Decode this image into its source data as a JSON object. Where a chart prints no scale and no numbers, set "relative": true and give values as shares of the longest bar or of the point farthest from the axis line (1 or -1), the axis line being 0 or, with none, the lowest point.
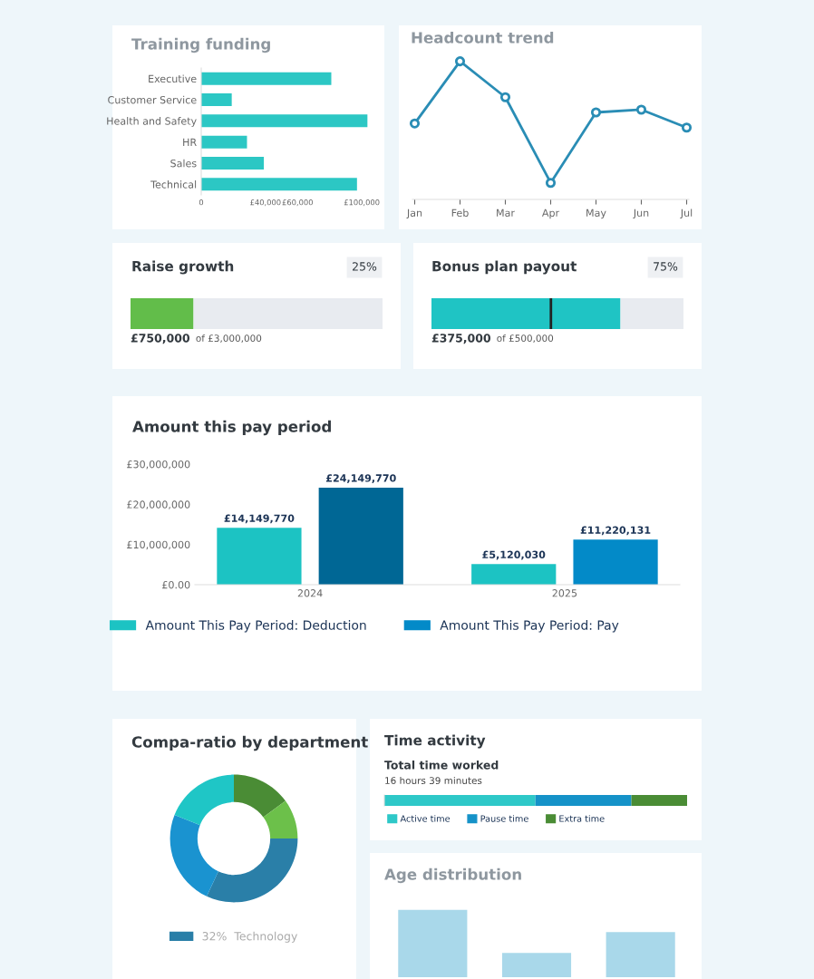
{
  "chart_data": [
    {
      "type": "bar",
      "title": "Training funding",
      "orientation": "horizontal",
      "categories": [
        "Executive",
        "Customer Service",
        "Health and Safety",
        "HR",
        "Sales",
        "Technical"
      ],
      "values": [
        81000,
        19000,
        103500,
        28500,
        39000,
        97000
      ],
      "color": "#2cc7c4",
      "xlim": [
        0,
        105000
      ],
      "xticks": [
        0,
        {
          "value": 40000,
          "label": "£40,000"
        },
        {
          "value": 60000,
          "label": "£60,000"
        },
        {
          "value": 100000,
          "label": "£100,000"
        }
      ]
    },
    {
      "type": "line",
      "title": "Headcount trend",
      "relative": true,
      "categories": [
        "Jan",
        "Feb",
        "Mar",
        "Apr",
        "May",
        "Jun",
        "Jul"
      ],
      "values": [
        0.55,
        1,
        0.74,
        0.12,
        0.63,
        0.65,
        0.52
      ],
      "color": "#2a8db5",
      "marker": "circle",
      "tick_labels": "x"
    },
    {
      "type": "bar",
      "title": "Raise growth",
      "orientation": "horizontal",
      "stacked": true,
      "tick_labels": false,
      "categories": [
        null
      ],
      "series": [
        {
          "color": "#62bd4a",
          "values": [
            750000
          ],
          "value_labels": [
            "£750,000"
          ]
        },
        {
          "color": "#e8ebf0",
          "values": [
            2250000
          ]
        }
      ],
      "annotations": [
        "25%",
        "of £3,000,000"
      ]
    },
    {
      "type": "bar",
      "title": "Bonus plan payout",
      "orientation": "horizontal",
      "stacked": true,
      "tick_labels": false,
      "categories": [
        null
      ],
      "series": [
        {
          "color": "#1fc4c4",
          "values": [
            375000
          ],
          "value_labels": [
            "£375,000"
          ]
        },
        {
          "color": "#e8ebf0",
          "values": [
            125000
          ]
        }
      ],
      "ref_lines": [
        {
          "axis": "x",
          "value": 237000,
          "color": "#222222"
        }
      ],
      "annotations": [
        "75%",
        "of £500,000"
      ]
    },
    {
      "type": "bar",
      "title": "Amount this pay period",
      "categories": [
        "2024",
        "2025"
      ],
      "series": [
        {
          "name": "Amount This Pay Period: Deduction",
          "colors": [
            "#1cc3c3",
            "#1cc3c3"
          ],
          "values": [
            14149770,
            5120030
          ],
          "value_labels": [
            "£14,149,770",
            "£5,120,030"
          ]
        },
        {
          "name": "Amount This Pay Period: Pay",
          "colors": [
            "#006795",
            "#038ac8"
          ],
          "values": [
            24149770,
            11220131
          ],
          "value_labels": [
            "£24,149,770",
            "£11,220,131"
          ]
        }
      ],
      "ylim": [
        0,
        30000000
      ],
      "yticks": [
        {
          "value": 0,
          "label": "£0.00"
        },
        {
          "value": 10000000,
          "label": "£10,000,000"
        },
        {
          "value": 20000000,
          "label": "£20,000,000"
        },
        {
          "value": 30000000,
          "label": "£30,000,000"
        }
      ],
      "data_labels": true,
      "legend": "bottom"
    },
    {
      "type": "donut",
      "title": "Compa-ratio by department",
      "categories": [
        null,
        null,
        "Technology",
        null,
        null
      ],
      "values": [
        15,
        10,
        32,
        24,
        19
      ],
      "value_labels": [
        null,
        null,
        "32%",
        null,
        null
      ],
      "colors": [
        "#4a8c35",
        "#6cc04a",
        "#2a7fa8",
        "#1a93d0",
        "#1fc6c6"
      ],
      "legend": "bottom"
    },
    {
      "type": "bar",
      "title": "Time activity",
      "subtitle": "Total time worked",
      "annotations": [
        "16 hours 39 minutes"
      ],
      "orientation": "horizontal",
      "stacked": true,
      "relative": true,
      "categories": [
        null
      ],
      "series": [
        {
          "name": "Active time",
          "color": "#2ec8c8",
          "values": [
            0.499
          ]
        },
        {
          "name": "Pause time",
          "color": "#1592c8",
          "values": [
            0.317
          ]
        },
        {
          "name": "Extra time",
          "color": "#4a8c35",
          "values": [
            0.184
          ]
        }
      ],
      "legend": "bottom left"
    },
    {
      "type": "bar",
      "title": "Age distribution",
      "relative": true,
      "categories": [
        null,
        null,
        null
      ],
      "values": [
        1,
        0.36,
        0.67
      ],
      "color": "#a9d8ea"
    }
  ]
}
